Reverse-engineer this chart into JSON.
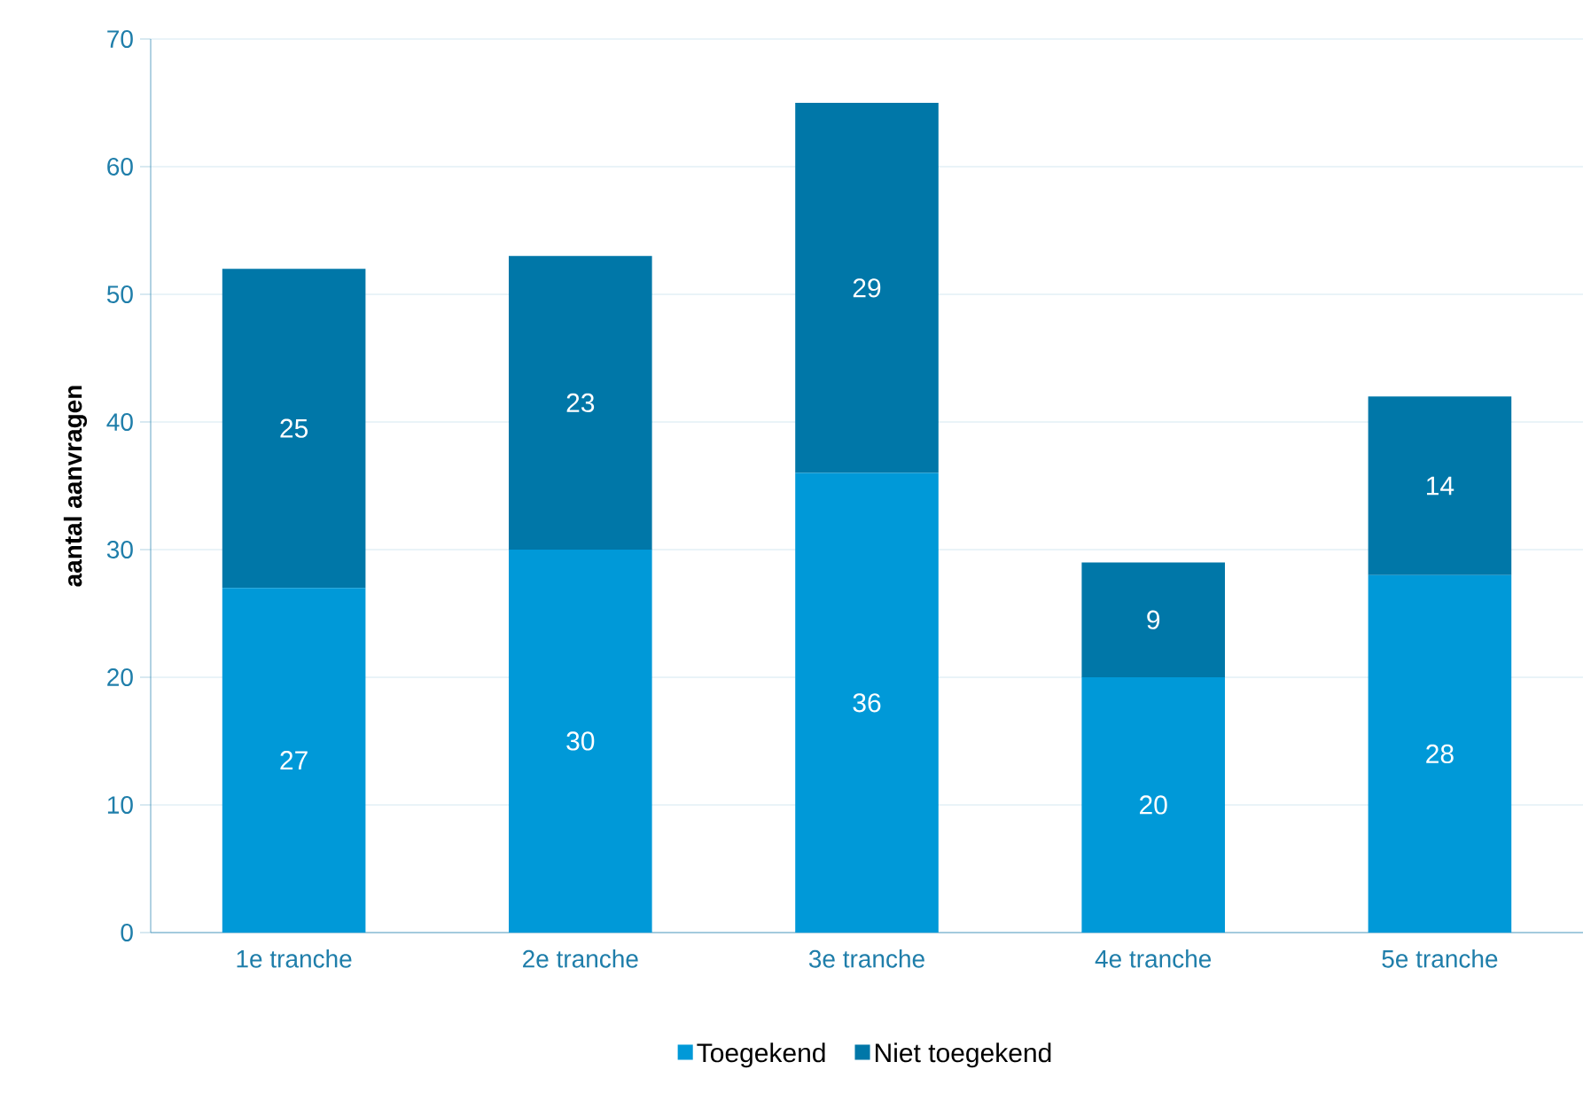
{
  "chart_data": {
    "type": "bar",
    "stacked": true,
    "ylabel": "aantal aanvragen",
    "categories": [
      "1e tranche",
      "2e tranche",
      "3e tranche",
      "4e tranche",
      "5e tranche"
    ],
    "series": [
      {
        "name": "Toegekend",
        "color": "#0099d8",
        "values": [
          27,
          30,
          36,
          20,
          28
        ]
      },
      {
        "name": "Niet toegekend",
        "color": "#0077a8",
        "values": [
          25,
          23,
          29,
          9,
          14
        ]
      }
    ],
    "ylim": [
      0,
      70
    ],
    "yticks": [
      0,
      10,
      20,
      30,
      40,
      50,
      60,
      70
    ],
    "grid": "y",
    "legend": "bottom",
    "data_labels": true
  }
}
